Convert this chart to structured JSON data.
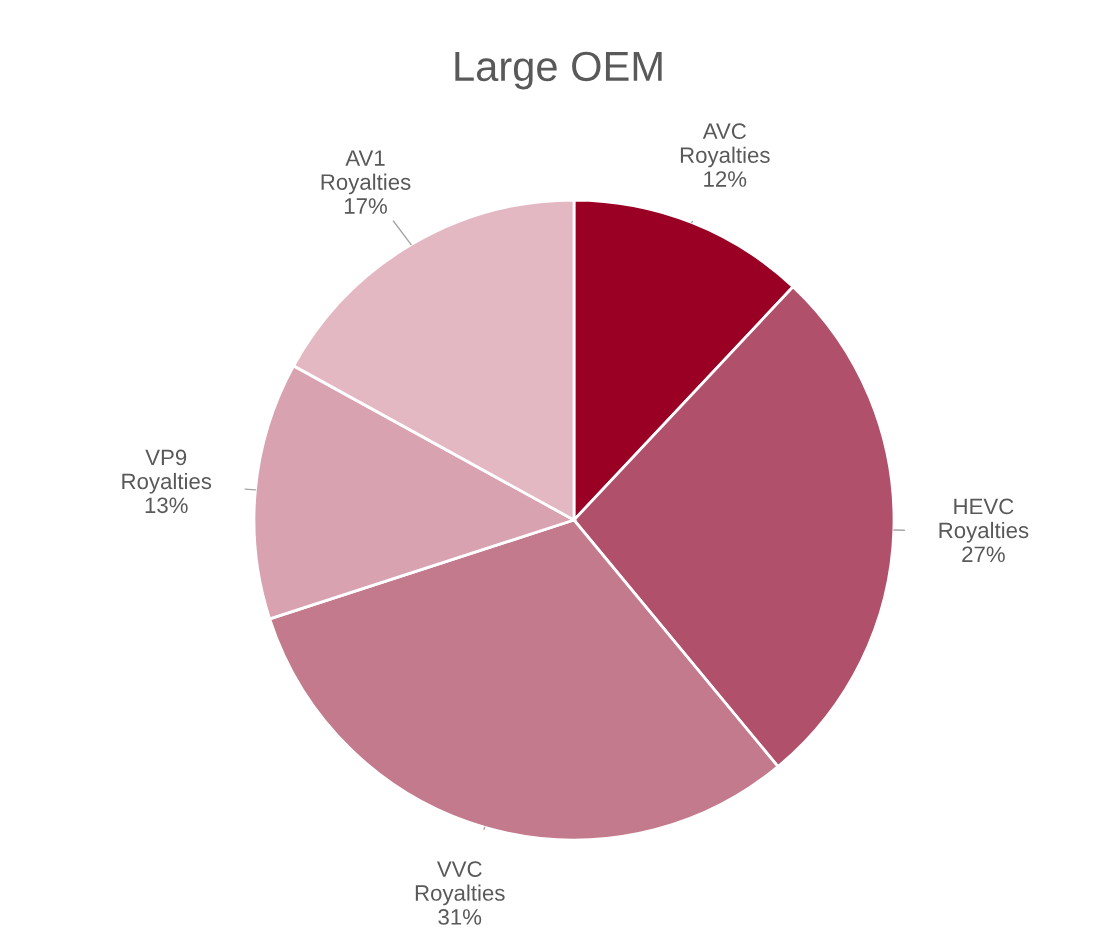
{
  "chart_data": {
    "type": "pie",
    "title": "Large OEM",
    "categories": [
      "AVC\nRoyalties",
      "HEVC\nRoyalties",
      "VVC\nRoyalties",
      "VP9\nRoyalties",
      "AV1\nRoyalties"
    ],
    "values": [
      12,
      27,
      31,
      13,
      17
    ],
    "colors": [
      "#990024",
      "#b0506a",
      "#c27a8c",
      "#d8a2b0",
      "#e4b8c3"
    ],
    "value_labels": [
      "12%",
      "27%",
      "31%",
      "13%",
      "17%"
    ]
  }
}
